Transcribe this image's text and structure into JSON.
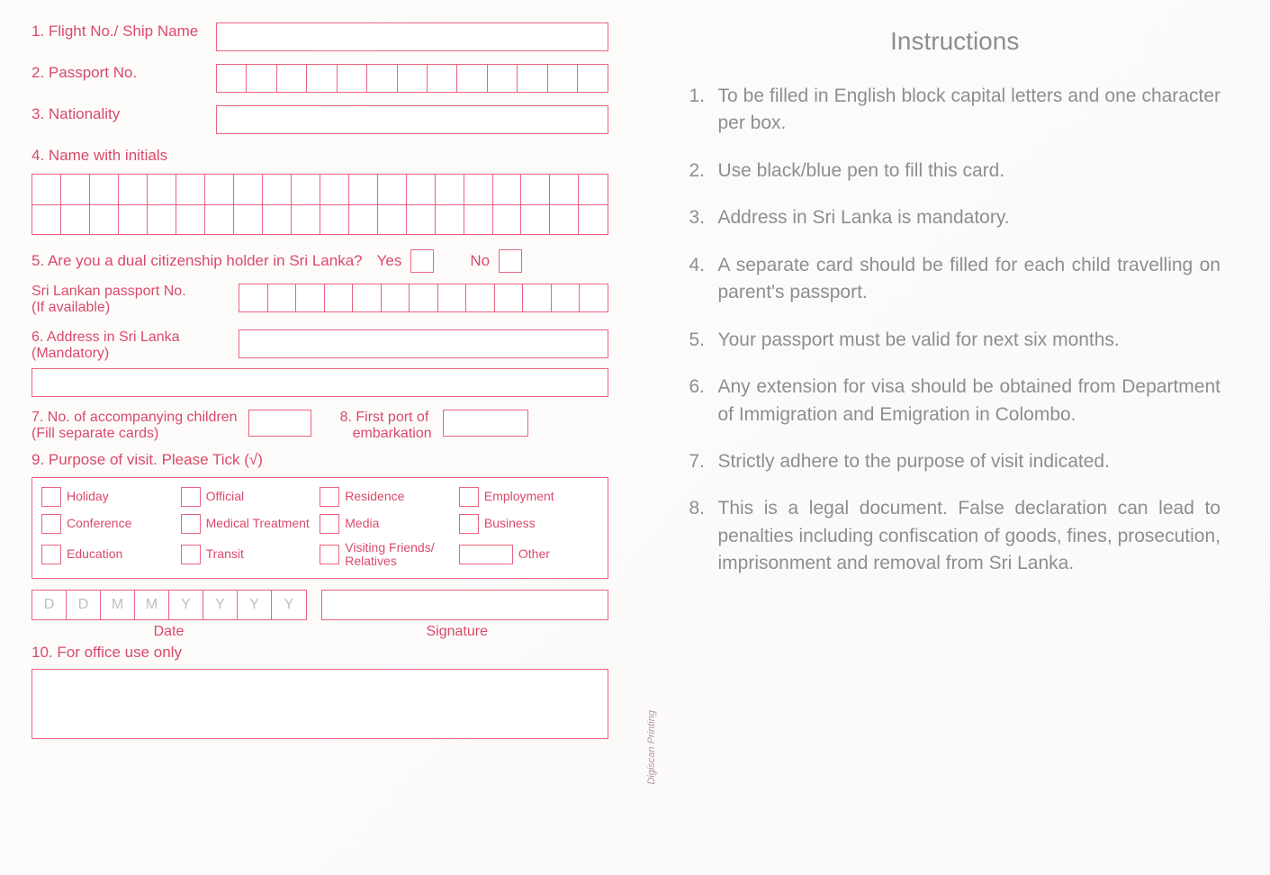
{
  "form": {
    "fields": {
      "f1": "1. Flight No./ Ship Name",
      "f2": "2. Passport No.",
      "f3": "3. Nationality",
      "f4": "4. Name with initials",
      "f5": "5. Are you a dual citizenship holder in Sri Lanka?",
      "f5_yes": "Yes",
      "f5_no": "No",
      "f5_sub": "Sri Lankan passport No.\n(If available)",
      "f5_sub_a": "Sri Lankan passport No.",
      "f5_sub_b": "(If available)",
      "f6_a": "6. Address in Sri Lanka",
      "f6_b": "(Mandatory)",
      "f7_a": "7. No. of accompanying children",
      "f7_b": "(Fill separate cards)",
      "f8_a": "8. First port of",
      "f8_b": "embarkation",
      "f9": "9. Purpose of visit. Please Tick (√)",
      "f10": "10. For office use only"
    },
    "passport_cells": 13,
    "sl_passport_cells": 13,
    "name_cells_per_row": 20,
    "name_rows": 2,
    "purpose": {
      "rows": [
        [
          "Holiday",
          "Official",
          "Residence",
          "Employment"
        ],
        [
          "Conference",
          "Medical Treatment",
          "Media",
          "Business"
        ],
        [
          "Education",
          "Transit",
          "Visiting Friends/\nRelatives",
          "Other"
        ]
      ],
      "other_wide_last": true
    },
    "date_placeholders": [
      "D",
      "D",
      "M",
      "M",
      "Y",
      "Y",
      "Y",
      "Y"
    ],
    "date_label": "Date",
    "signature_label": "Signature",
    "ghost_title": "",
    "ghost_sub": ""
  },
  "instructions": {
    "title": "Instructions",
    "items": [
      "To be filled in English block capital letters and one character per box.",
      "Use black/blue pen to fill this card.",
      "Address in Sri Lanka is mandatory.",
      "A separate card should be filled for each child travelling on parent's passport.",
      "Your passport must be valid for next six months.",
      "Any extension for visa should be obtained from Department of Immigration and Emigration in Colombo.",
      "Strictly adhere to the purpose of visit indicated.",
      "This is a legal document. False declaration can lead to penalties including confiscation of goods, fines, prosecution, imprisonment and removal from Sri Lanka."
    ]
  },
  "printer_credit": "Digiscan Printing",
  "colors": {
    "form_line": "#e9657f",
    "form_text": "#d94a6a",
    "instr_text": "#8a8f93",
    "date_placeholder": "#b9bfc4",
    "background": "#fefefe"
  },
  "typography": {
    "form_label_pt": 17,
    "instr_title_pt": 28,
    "instr_body_pt": 21,
    "purpose_label_pt": 14
  }
}
